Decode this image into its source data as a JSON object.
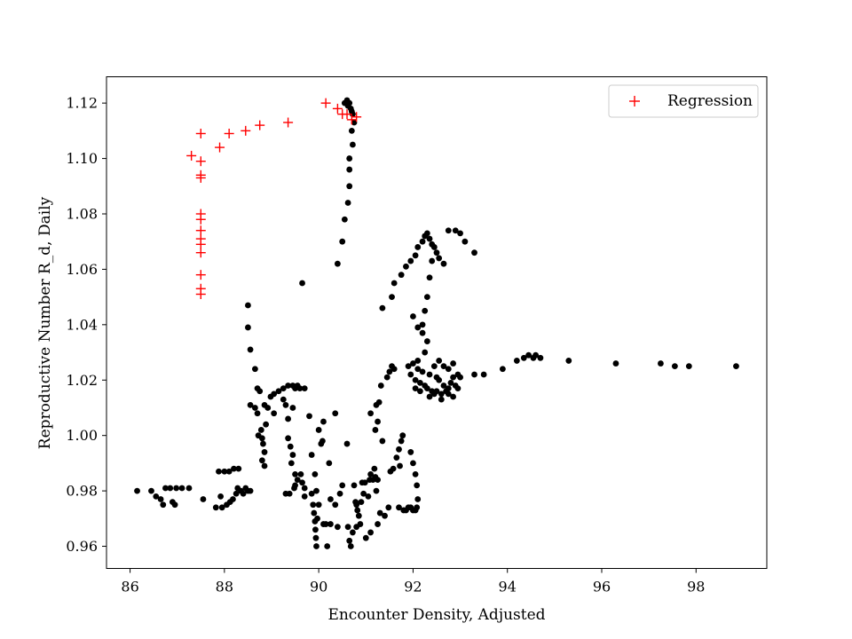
{
  "chart_data": {
    "type": "scatter",
    "title": "",
    "xlabel": "Encounter Density, Adjusted",
    "ylabel": "Reproductive Number R_d, Daily",
    "xlim": [
      85.5,
      99.5
    ],
    "ylim": [
      0.952,
      1.1295
    ],
    "xticks": [
      86,
      88,
      90,
      92,
      94,
      96,
      98
    ],
    "yticks": [
      0.96,
      0.98,
      1.0,
      1.02,
      1.04,
      1.06,
      1.08,
      1.1,
      1.12
    ],
    "ytick_labels": [
      "0.96",
      "0.98",
      "1.00",
      "1.02",
      "1.04",
      "1.06",
      "1.08",
      "1.10",
      "1.12"
    ],
    "grid": false,
    "legend": {
      "position": "upper-right",
      "entries": [
        "Regression"
      ]
    },
    "series": [
      {
        "name": "",
        "marker": "circle",
        "color": "#000000",
        "points": [
          [
            86.15,
            0.98
          ],
          [
            86.45,
            0.98
          ],
          [
            86.55,
            0.978
          ],
          [
            86.65,
            0.977
          ],
          [
            86.7,
            0.975
          ],
          [
            86.75,
            0.981
          ],
          [
            86.85,
            0.981
          ],
          [
            86.9,
            0.976
          ],
          [
            86.95,
            0.975
          ],
          [
            86.98,
            0.981
          ],
          [
            87.1,
            0.981
          ],
          [
            87.25,
            0.981
          ],
          [
            87.55,
            0.977
          ],
          [
            87.82,
            0.974
          ],
          [
            87.88,
            0.987
          ],
          [
            87.92,
            0.978
          ],
          [
            87.95,
            0.974
          ],
          [
            88.0,
            0.987
          ],
          [
            88.05,
            0.975
          ],
          [
            88.1,
            0.987
          ],
          [
            88.12,
            0.976
          ],
          [
            88.18,
            0.977
          ],
          [
            88.2,
            0.988
          ],
          [
            88.25,
            0.979
          ],
          [
            88.28,
            0.981
          ],
          [
            88.3,
            0.988
          ],
          [
            88.35,
            0.98
          ],
          [
            88.4,
            0.979
          ],
          [
            88.45,
            0.981
          ],
          [
            88.5,
            0.98
          ],
          [
            88.55,
            0.98
          ],
          [
            88.5,
            1.047
          ],
          [
            88.5,
            1.039
          ],
          [
            88.55,
            1.031
          ],
          [
            88.65,
            1.024
          ],
          [
            88.55,
            1.011
          ],
          [
            88.65,
            1.01
          ],
          [
            88.7,
            1.008
          ],
          [
            88.72,
            1.0
          ],
          [
            88.78,
            1.002
          ],
          [
            88.8,
            0.999
          ],
          [
            88.82,
            0.997
          ],
          [
            88.85,
            0.994
          ],
          [
            88.8,
            0.991
          ],
          [
            88.85,
            0.989
          ],
          [
            88.88,
            1.004
          ],
          [
            88.92,
            1.01
          ],
          [
            88.98,
            1.014
          ],
          [
            88.7,
            1.017
          ],
          [
            88.75,
            1.016
          ],
          [
            88.85,
            1.011
          ],
          [
            89.05,
            1.015
          ],
          [
            89.15,
            1.016
          ],
          [
            89.25,
            1.017
          ],
          [
            89.35,
            1.018
          ],
          [
            89.45,
            1.018
          ],
          [
            89.5,
            1.017
          ],
          [
            89.55,
            1.018
          ],
          [
            89.6,
            1.017
          ],
          [
            89.7,
            1.017
          ],
          [
            89.05,
            1.008
          ],
          [
            89.25,
            1.013
          ],
          [
            89.3,
            1.011
          ],
          [
            89.35,
            1.006
          ],
          [
            89.45,
            1.01
          ],
          [
            89.35,
            0.999
          ],
          [
            89.4,
            0.996
          ],
          [
            89.45,
            0.993
          ],
          [
            89.42,
            0.99
          ],
          [
            89.5,
            0.986
          ],
          [
            89.55,
            0.984
          ],
          [
            89.5,
            0.982
          ],
          [
            89.65,
            0.983
          ],
          [
            89.7,
            0.981
          ],
          [
            89.62,
            0.986
          ],
          [
            89.7,
            0.978
          ],
          [
            89.3,
            0.979
          ],
          [
            89.38,
            0.979
          ],
          [
            89.48,
            0.981
          ],
          [
            89.65,
            1.055
          ],
          [
            89.8,
            1.007
          ],
          [
            89.85,
            0.993
          ],
          [
            89.92,
            0.986
          ],
          [
            89.95,
            0.98
          ],
          [
            89.85,
            0.979
          ],
          [
            89.88,
            0.975
          ],
          [
            89.9,
            0.972
          ],
          [
            89.92,
            0.969
          ],
          [
            89.93,
            0.966
          ],
          [
            89.94,
            0.963
          ],
          [
            89.95,
            0.96
          ],
          [
            89.97,
            0.97
          ],
          [
            90.0,
            0.975
          ],
          [
            90.0,
            1.002
          ],
          [
            90.05,
            0.997
          ],
          [
            90.08,
            0.998
          ],
          [
            90.1,
            1.005
          ],
          [
            90.1,
            0.968
          ],
          [
            90.15,
            0.968
          ],
          [
            90.18,
            0.96
          ],
          [
            90.22,
            0.99
          ],
          [
            90.25,
            0.977
          ],
          [
            90.25,
            0.968
          ],
          [
            90.35,
            0.975
          ],
          [
            90.4,
            0.967
          ],
          [
            90.45,
            0.979
          ],
          [
            90.5,
            0.982
          ],
          [
            90.35,
            1.008
          ],
          [
            90.4,
            1.062
          ],
          [
            90.5,
            1.07
          ],
          [
            90.55,
            1.078
          ],
          [
            90.55,
            1.12
          ],
          [
            90.6,
            1.121
          ],
          [
            90.62,
            1.119
          ],
          [
            90.65,
            1.12
          ],
          [
            90.68,
            1.118
          ],
          [
            90.7,
            1.117
          ],
          [
            90.72,
            1.116
          ],
          [
            90.75,
            1.113
          ],
          [
            90.7,
            1.11
          ],
          [
            90.72,
            1.105
          ],
          [
            90.65,
            1.1
          ],
          [
            90.65,
            1.096
          ],
          [
            90.65,
            1.09
          ],
          [
            90.62,
            1.084
          ],
          [
            90.6,
            0.997
          ],
          [
            90.62,
            0.967
          ],
          [
            90.65,
            0.962
          ],
          [
            90.68,
            0.96
          ],
          [
            90.72,
            0.965
          ],
          [
            90.75,
            0.982
          ],
          [
            90.78,
            0.976
          ],
          [
            90.8,
            0.975
          ],
          [
            90.8,
            0.967
          ],
          [
            90.82,
            0.973
          ],
          [
            90.85,
            0.971
          ],
          [
            90.88,
            0.968
          ],
          [
            90.9,
            0.976
          ],
          [
            90.92,
            0.983
          ],
          [
            90.95,
            0.979
          ],
          [
            90.98,
            0.983
          ],
          [
            91.0,
            0.963
          ],
          [
            91.05,
            0.978
          ],
          [
            91.08,
            0.984
          ],
          [
            91.1,
            0.986
          ],
          [
            91.1,
            0.965
          ],
          [
            91.15,
            0.984
          ],
          [
            91.18,
            0.988
          ],
          [
            91.2,
            0.985
          ],
          [
            91.22,
            0.98
          ],
          [
            91.25,
            0.984
          ],
          [
            91.25,
            0.968
          ],
          [
            91.3,
            0.972
          ],
          [
            91.1,
            1.008
          ],
          [
            91.2,
            1.002
          ],
          [
            91.22,
            1.011
          ],
          [
            91.25,
            1.005
          ],
          [
            91.28,
            1.012
          ],
          [
            91.32,
            1.018
          ],
          [
            91.35,
            0.998
          ],
          [
            91.45,
            1.021
          ],
          [
            91.5,
            1.023
          ],
          [
            91.55,
            1.025
          ],
          [
            91.6,
            1.024
          ],
          [
            91.52,
            0.987
          ],
          [
            91.58,
            0.988
          ],
          [
            91.65,
            0.992
          ],
          [
            91.7,
            0.995
          ],
          [
            91.72,
            0.989
          ],
          [
            91.75,
            0.998
          ],
          [
            91.78,
            1.0
          ],
          [
            91.7,
            0.974
          ],
          [
            91.8,
            0.973
          ],
          [
            91.85,
            0.973
          ],
          [
            91.9,
            0.974
          ],
          [
            91.95,
            0.974
          ],
          [
            92.0,
            0.973
          ],
          [
            92.05,
            0.973
          ],
          [
            92.08,
            0.974
          ],
          [
            92.1,
            0.977
          ],
          [
            91.95,
            0.994
          ],
          [
            92.0,
            0.99
          ],
          [
            92.05,
            0.986
          ],
          [
            92.08,
            0.982
          ],
          [
            91.4,
            0.971
          ],
          [
            91.48,
            0.974
          ],
          [
            91.35,
            1.046
          ],
          [
            91.55,
            1.05
          ],
          [
            91.6,
            1.055
          ],
          [
            91.75,
            1.058
          ],
          [
            91.85,
            1.061
          ],
          [
            91.95,
            1.063
          ],
          [
            92.05,
            1.065
          ],
          [
            92.1,
            1.068
          ],
          [
            92.2,
            1.07
          ],
          [
            92.25,
            1.072
          ],
          [
            92.3,
            1.073
          ],
          [
            92.35,
            1.071
          ],
          [
            92.4,
            1.069
          ],
          [
            92.45,
            1.068
          ],
          [
            92.5,
            1.066
          ],
          [
            92.55,
            1.064
          ],
          [
            92.65,
            1.062
          ],
          [
            92.75,
            1.074
          ],
          [
            92.9,
            1.074
          ],
          [
            93.0,
            1.073
          ],
          [
            93.1,
            1.07
          ],
          [
            93.3,
            1.066
          ],
          [
            92.4,
            1.063
          ],
          [
            92.35,
            1.057
          ],
          [
            92.3,
            1.05
          ],
          [
            92.25,
            1.045
          ],
          [
            92.2,
            1.04
          ],
          [
            92.0,
            1.043
          ],
          [
            92.1,
            1.039
          ],
          [
            92.2,
            1.037
          ],
          [
            92.3,
            1.034
          ],
          [
            92.25,
            1.03
          ],
          [
            92.1,
            1.027
          ],
          [
            91.9,
            1.025
          ],
          [
            91.95,
            1.022
          ],
          [
            92.0,
            1.026
          ],
          [
            92.05,
            1.02
          ],
          [
            92.1,
            1.024
          ],
          [
            92.15,
            1.019
          ],
          [
            92.2,
            1.023
          ],
          [
            92.25,
            1.018
          ],
          [
            92.3,
            1.017
          ],
          [
            92.35,
            1.022
          ],
          [
            92.4,
            1.016
          ],
          [
            92.45,
            1.015
          ],
          [
            92.5,
            1.021
          ],
          [
            92.55,
            1.02
          ],
          [
            92.6,
            1.015
          ],
          [
            92.65,
            1.018
          ],
          [
            92.7,
            1.016
          ],
          [
            92.75,
            1.017
          ],
          [
            92.8,
            1.019
          ],
          [
            92.85,
            1.021
          ],
          [
            92.9,
            1.018
          ],
          [
            92.95,
            1.022
          ],
          [
            93.0,
            1.021
          ],
          [
            92.95,
            1.017
          ],
          [
            92.45,
            1.025
          ],
          [
            92.55,
            1.027
          ],
          [
            92.65,
            1.025
          ],
          [
            92.75,
            1.024
          ],
          [
            92.85,
            1.026
          ],
          [
            92.05,
            1.017
          ],
          [
            92.15,
            1.016
          ],
          [
            92.35,
            1.014
          ],
          [
            92.5,
            1.016
          ],
          [
            92.6,
            1.013
          ],
          [
            92.75,
            1.015
          ],
          [
            92.85,
            1.014
          ],
          [
            93.3,
            1.022
          ],
          [
            93.5,
            1.022
          ],
          [
            93.9,
            1.024
          ],
          [
            94.2,
            1.027
          ],
          [
            94.35,
            1.028
          ],
          [
            94.45,
            1.029
          ],
          [
            94.55,
            1.028
          ],
          [
            94.6,
            1.029
          ],
          [
            94.7,
            1.028
          ],
          [
            95.3,
            1.027
          ],
          [
            96.3,
            1.026
          ],
          [
            97.25,
            1.026
          ],
          [
            97.55,
            1.025
          ],
          [
            97.85,
            1.025
          ],
          [
            98.85,
            1.025
          ]
        ]
      },
      {
        "name": "Regression",
        "marker": "plus",
        "color": "#ff0000",
        "points": [
          [
            87.3,
            1.101
          ],
          [
            87.5,
            1.109
          ],
          [
            87.5,
            1.099
          ],
          [
            87.5,
            1.094
          ],
          [
            87.5,
            1.093
          ],
          [
            87.5,
            1.08
          ],
          [
            87.5,
            1.078
          ],
          [
            87.5,
            1.074
          ],
          [
            87.5,
            1.071
          ],
          [
            87.5,
            1.069
          ],
          [
            87.5,
            1.066
          ],
          [
            87.5,
            1.058
          ],
          [
            87.5,
            1.053
          ],
          [
            87.5,
            1.051
          ],
          [
            87.9,
            1.104
          ],
          [
            88.1,
            1.109
          ],
          [
            88.45,
            1.11
          ],
          [
            88.75,
            1.112
          ],
          [
            89.35,
            1.113
          ],
          [
            90.15,
            1.12
          ],
          [
            90.4,
            1.118
          ],
          [
            90.5,
            1.116
          ],
          [
            90.6,
            1.116
          ],
          [
            90.7,
            1.114
          ],
          [
            90.8,
            1.115
          ]
        ]
      }
    ]
  }
}
